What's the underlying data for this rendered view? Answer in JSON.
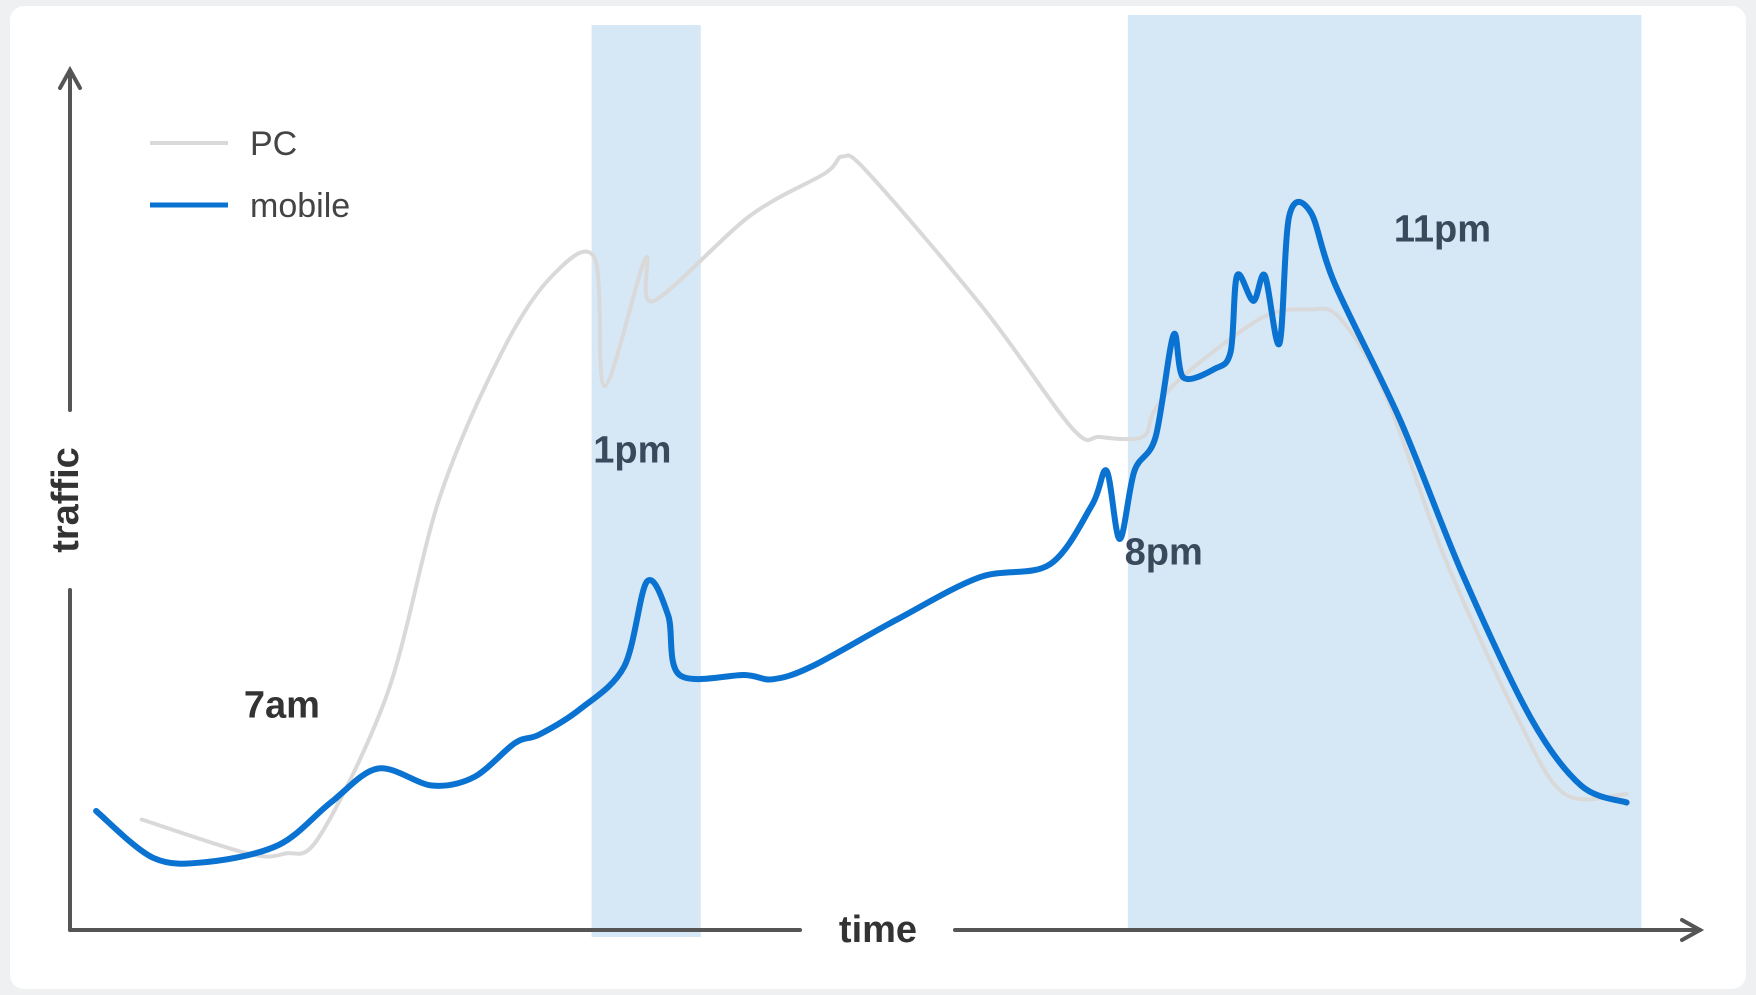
{
  "chart_data": {
    "type": "line",
    "xlabel": "time",
    "ylabel": "traffic",
    "legend_position": "top-left",
    "grid": false,
    "x_domain": [
      0,
      100
    ],
    "y_domain": [
      0,
      100
    ],
    "series": [
      {
        "name": "PC",
        "color": "#d9d9d9",
        "points": [
          [
            4.4,
            13
          ],
          [
            10.9,
            9
          ],
          [
            13.2,
            9
          ],
          [
            15.3,
            11
          ],
          [
            19.5,
            28
          ],
          [
            22.7,
            51
          ],
          [
            26.5,
            68
          ],
          [
            29.6,
            77
          ],
          [
            32.2,
            79
          ],
          [
            32.8,
            64
          ],
          [
            35.3,
            79
          ],
          [
            35.8,
            74
          ],
          [
            41.7,
            84
          ],
          [
            46.3,
            89
          ],
          [
            47.4,
            91
          ],
          [
            49.0,
            89
          ],
          [
            56.1,
            73
          ],
          [
            61.5,
            59
          ],
          [
            63.2,
            58
          ],
          [
            65.8,
            58
          ],
          [
            66.5,
            61
          ],
          [
            68.2,
            65
          ],
          [
            73.1,
            72
          ],
          [
            76.0,
            73
          ],
          [
            77.9,
            72
          ],
          [
            80.7,
            63
          ],
          [
            84.3,
            44
          ],
          [
            88.8,
            25
          ],
          [
            91.7,
            16
          ],
          [
            95.5,
            16
          ]
        ]
      },
      {
        "name": "mobile",
        "color": "#0a72d1",
        "points": [
          [
            1.6,
            14
          ],
          [
            5.1,
            8.5
          ],
          [
            8.4,
            8
          ],
          [
            12.8,
            10
          ],
          [
            16.0,
            15
          ],
          [
            18.9,
            19
          ],
          [
            22.2,
            17
          ],
          [
            24.8,
            18
          ],
          [
            27.3,
            22
          ],
          [
            28.8,
            23
          ],
          [
            31.3,
            26
          ],
          [
            34.0,
            31
          ],
          [
            35.4,
            41
          ],
          [
            36.7,
            37
          ],
          [
            37.4,
            30
          ],
          [
            41.4,
            30
          ],
          [
            43.1,
            29.5
          ],
          [
            45.5,
            31
          ],
          [
            50.7,
            36.5
          ],
          [
            55.8,
            41.5
          ],
          [
            60.1,
            43
          ],
          [
            62.7,
            50
          ],
          [
            63.6,
            54
          ],
          [
            64.4,
            46
          ],
          [
            65.3,
            54
          ],
          [
            66.6,
            58
          ],
          [
            67.7,
            70
          ],
          [
            68.3,
            65
          ],
          [
            70.2,
            66
          ],
          [
            71.2,
            68
          ],
          [
            71.6,
            77
          ],
          [
            72.6,
            74
          ],
          [
            73.3,
            77
          ],
          [
            74.2,
            69
          ],
          [
            74.8,
            84
          ],
          [
            76.1,
            84.5
          ],
          [
            77.6,
            76
          ],
          [
            81.6,
            60
          ],
          [
            85.4,
            42
          ],
          [
            89.6,
            25
          ],
          [
            92.7,
            17
          ],
          [
            95.5,
            15
          ]
        ]
      }
    ],
    "highlight_bands": [
      {
        "x_start": 32.0,
        "x_end": 38.7,
        "color": "#d6e7f6"
      },
      {
        "x_start": 64.9,
        "x_end": 96.4,
        "color": "#d6e7f6"
      }
    ],
    "annotations": [
      {
        "text": "7am",
        "x": 13.0,
        "y": 25,
        "color": "#333333"
      },
      {
        "text": "1pm",
        "x": 34.5,
        "y": 55,
        "color": "#3a4a5c"
      },
      {
        "text": "8pm",
        "x": 67.1,
        "y": 43,
        "color": "#3a4a5c"
      },
      {
        "text": "11pm",
        "x": 84.2,
        "y": 81,
        "color": "#3a4a5c"
      }
    ]
  }
}
